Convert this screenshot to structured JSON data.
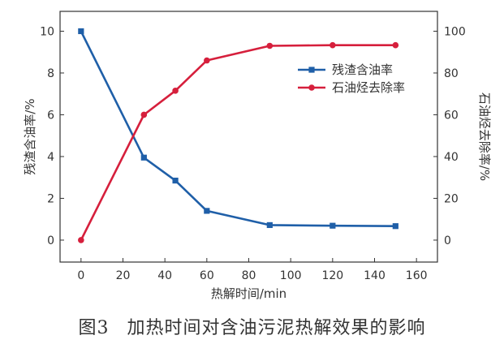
{
  "chart_data": {
    "type": "line",
    "x": [
      0,
      30,
      45,
      60,
      90,
      120,
      150
    ],
    "series": [
      {
        "name": "残渣含油率",
        "axis": "left",
        "color": "#1f5fa8",
        "marker": "square",
        "values": [
          10.0,
          3.95,
          2.85,
          1.4,
          0.72,
          0.69,
          0.67
        ]
      },
      {
        "name": "石油烃去除率",
        "axis": "right",
        "color": "#d61f3c",
        "marker": "circle",
        "values": [
          0,
          60,
          71.5,
          86,
          93,
          93.3,
          93.3
        ]
      }
    ],
    "xlabel": "热解时间/min",
    "ylabel_left": "残渣含油率/%",
    "ylabel_right": "石油烃去除率/%",
    "xlim": [
      -10,
      170
    ],
    "ylim_left": [
      -1.05,
      10.95
    ],
    "ylim_right": [
      -10.5,
      109.5
    ],
    "xticks": [
      0,
      20,
      40,
      60,
      80,
      100,
      120,
      140,
      160
    ],
    "yticks_left": [
      0,
      2,
      4,
      6,
      8,
      10
    ],
    "yticks_right": [
      0,
      20,
      40,
      60,
      80,
      100
    ],
    "grid": false,
    "legend_position": "upper-right"
  },
  "caption": {
    "figure": "图3",
    "text": "加热时间对含油污泥热解效果的影响"
  }
}
